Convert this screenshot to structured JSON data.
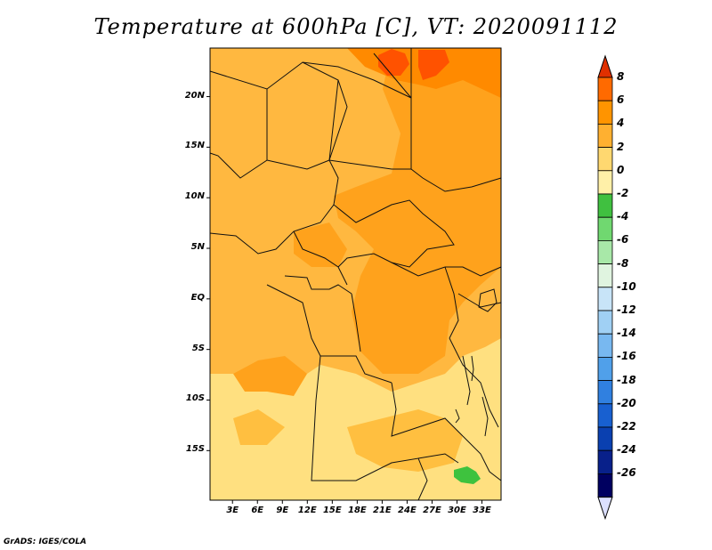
{
  "title": "Temperature at 600hPa [C], VT: 2020091112",
  "footer": "GrADS: IGES/COLA",
  "map": {
    "lat_labels": [
      {
        "text": "20N",
        "lat": 20
      },
      {
        "text": "15N",
        "lat": 15
      },
      {
        "text": "10N",
        "lat": 10
      },
      {
        "text": "5N",
        "lat": 5
      },
      {
        "text": "EQ",
        "lat": 0
      },
      {
        "text": "5S",
        "lat": -5
      },
      {
        "text": "10S",
        "lat": -10
      },
      {
        "text": "15S",
        "lat": -15
      }
    ],
    "lon_labels": [
      {
        "text": "3E",
        "lon": 3
      },
      {
        "text": "6E",
        "lon": 6
      },
      {
        "text": "9E",
        "lon": 9
      },
      {
        "text": "12E",
        "lon": 12
      },
      {
        "text": "15E",
        "lon": 15
      },
      {
        "text": "18E",
        "lon": 18
      },
      {
        "text": "21E",
        "lon": 21
      },
      {
        "text": "24E",
        "lon": 24
      },
      {
        "text": "27E",
        "lon": 27
      },
      {
        "text": "30E",
        "lon": 30
      },
      {
        "text": "33E",
        "lon": 33
      }
    ],
    "lon_range": [
      0.3,
      35.3
    ],
    "lat_range": [
      -19.9,
      24.8
    ]
  },
  "colorbar": {
    "levels": [
      "8",
      "6",
      "4",
      "2",
      "0",
      "-2",
      "-4",
      "-6",
      "-8",
      "-10",
      "-12",
      "-14",
      "-16",
      "-18",
      "-20",
      "-22",
      "-24",
      "-26"
    ],
    "top_color": "#e03000",
    "bottom_color": "#dce0ff",
    "colors": [
      "#ff3a00",
      "#ff6a00",
      "#ff9400",
      "#ffb030",
      "#ffd870",
      "#fff0a8",
      "#40c040",
      "#70d870",
      "#a8e8a8",
      "#e0f4e0",
      "#c8e4f8",
      "#a0d0f4",
      "#78b8f0",
      "#50a0ea",
      "#3080e0",
      "#1860d0",
      "#0a40b0",
      "#08208a",
      "#000060"
    ]
  },
  "legend_colors": {
    "c_2_4": "#ffa626",
    "c_4_6": "#ff9a00",
    "c_0_2": "#ffc24a",
    "c_m2_0": "#ffe27e",
    "c_6_8": "#ff5a00",
    "c_m6_m4": "#3ec23e"
  }
}
